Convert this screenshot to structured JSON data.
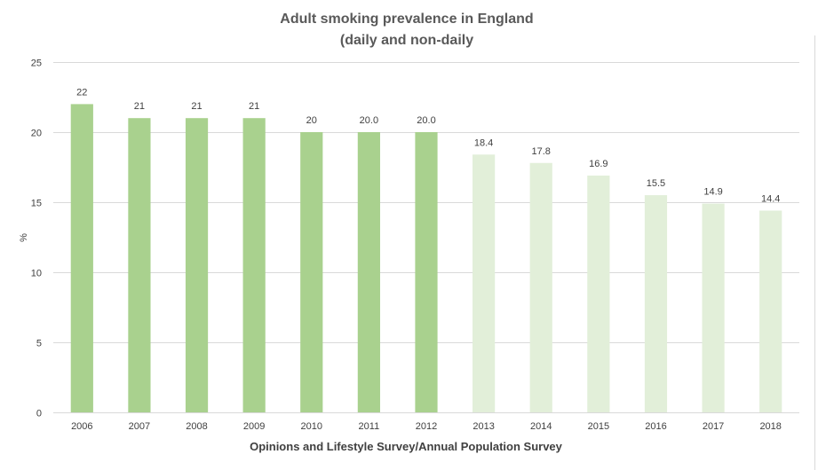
{
  "chart_data": {
    "type": "bar",
    "title": "Adult smoking prevalence in England",
    "subtitle": "(daily and non-daily",
    "xlabel": "Opinions and Lifestyle Survey/Annual Population Survey",
    "ylabel": "%",
    "ylim": [
      0,
      25
    ],
    "yticks": [
      0,
      5,
      10,
      15,
      20,
      25
    ],
    "grid": true,
    "categories": [
      "2006",
      "2007",
      "2008",
      "2009",
      "2010",
      "2011",
      "2012",
      "2013",
      "2014",
      "2015",
      "2016",
      "2017",
      "2018"
    ],
    "values": [
      22,
      21,
      21,
      21,
      20,
      20.0,
      20.0,
      18.4,
      17.8,
      16.9,
      15.5,
      14.9,
      14.4
    ],
    "data_labels": [
      "22",
      "21",
      "21",
      "21",
      "20",
      "20.0",
      "20.0",
      "18.4",
      "17.8",
      "16.9",
      "15.5",
      "14.9",
      "14.4"
    ],
    "colors": [
      "#a9d18e",
      "#a9d18e",
      "#a9d18e",
      "#a9d18e",
      "#a9d18e",
      "#a9d18e",
      "#a9d18e",
      "#e2efd9",
      "#e2efd9",
      "#e2efd9",
      "#e2efd9",
      "#e2efd9",
      "#e2efd9"
    ]
  }
}
